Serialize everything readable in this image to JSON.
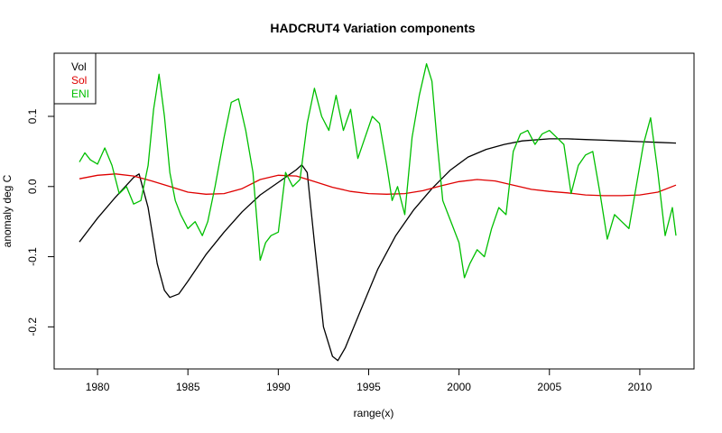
{
  "chart_data": {
    "type": "line",
    "title": "HADCRUT4 Variation components",
    "xlabel": "range(x)",
    "ylabel": "anomaly deg C",
    "xlim": [
      1977.6,
      2013.0
    ],
    "ylim": [
      -0.26,
      0.19
    ],
    "x_ticks": [
      1980,
      1985,
      1990,
      1995,
      2000,
      2005,
      2010
    ],
    "y_ticks": [
      -0.2,
      -0.1,
      0.0,
      0.1
    ],
    "x_tick_labels": [
      "1980",
      "1985",
      "1990",
      "1995",
      "2000",
      "2005",
      "2010"
    ],
    "y_tick_labels": [
      "-0.2",
      "-0.1",
      "0.0",
      "0.1"
    ],
    "legend": {
      "position": "top-left"
    },
    "grid": false,
    "series": [
      {
        "name": "Vol",
        "color": "#000000",
        "x": [
          1979.0,
          1980.0,
          1981.0,
          1982.0,
          1982.3,
          1982.8,
          1983.3,
          1983.7,
          1984.0,
          1984.5,
          1985.0,
          1986.0,
          1987.0,
          1988.0,
          1989.0,
          1990.0,
          1991.0,
          1991.3,
          1991.6,
          1992.0,
          1992.5,
          1993.0,
          1993.3,
          1993.7,
          1994.5,
          1995.5,
          1996.5,
          1997.5,
          1998.5,
          1999.5,
          2000.5,
          2001.5,
          2002.5,
          2003.5,
          2005.0,
          2006.0,
          2007.0,
          2008.0,
          2009.0,
          2010.0,
          2011.0,
          2012.0
        ],
        "y": [
          -0.079,
          -0.045,
          -0.015,
          0.013,
          0.018,
          -0.03,
          -0.11,
          -0.148,
          -0.158,
          -0.153,
          -0.135,
          -0.097,
          -0.065,
          -0.036,
          -0.012,
          0.006,
          0.024,
          0.031,
          0.02,
          -0.08,
          -0.2,
          -0.242,
          -0.248,
          -0.23,
          -0.18,
          -0.118,
          -0.07,
          -0.033,
          -0.003,
          0.023,
          0.042,
          0.053,
          0.06,
          0.065,
          0.068,
          0.068,
          0.067,
          0.066,
          0.065,
          0.064,
          0.063,
          0.062
        ]
      },
      {
        "name": "Sol",
        "color": "#df0000",
        "x": [
          1979.0,
          1980.0,
          1981.0,
          1982.0,
          1983.0,
          1984.0,
          1985.0,
          1986.0,
          1987.0,
          1988.0,
          1989.0,
          1990.0,
          1991.0,
          1992.0,
          1993.0,
          1994.0,
          1995.0,
          1996.0,
          1997.0,
          1998.0,
          1999.0,
          2000.0,
          2001.0,
          2002.0,
          2003.0,
          2004.0,
          2005.0,
          2006.0,
          2007.0,
          2008.0,
          2009.0,
          2010.0,
          2011.0,
          2012.0
        ],
        "y": [
          0.011,
          0.016,
          0.018,
          0.015,
          0.008,
          0.0,
          -0.008,
          -0.011,
          -0.01,
          -0.003,
          0.01,
          0.016,
          0.015,
          0.007,
          -0.001,
          -0.007,
          -0.01,
          -0.011,
          -0.01,
          -0.006,
          0.001,
          0.007,
          0.01,
          0.008,
          0.002,
          -0.004,
          -0.007,
          -0.009,
          -0.012,
          -0.013,
          -0.013,
          -0.012,
          -0.008,
          0.002
        ]
      },
      {
        "name": "ENI",
        "color": "#00bf00",
        "x": [
          1979.0,
          1979.3,
          1979.6,
          1980.0,
          1980.4,
          1980.8,
          1981.2,
          1981.6,
          1982.0,
          1982.4,
          1982.8,
          1983.1,
          1983.4,
          1983.7,
          1984.0,
          1984.3,
          1984.6,
          1985.0,
          1985.4,
          1985.8,
          1986.1,
          1986.5,
          1987.0,
          1987.4,
          1987.8,
          1988.2,
          1988.6,
          1989.0,
          1989.3,
          1989.6,
          1990.0,
          1990.4,
          1990.8,
          1991.2,
          1991.6,
          1992.0,
          1992.4,
          1992.8,
          1993.2,
          1993.6,
          1994.0,
          1994.4,
          1994.8,
          1995.2,
          1995.6,
          1996.0,
          1996.3,
          1996.6,
          1997.0,
          1997.4,
          1997.8,
          1998.2,
          1998.5,
          1998.8,
          1999.1,
          1999.4,
          1999.7,
          2000.0,
          2000.3,
          2000.6,
          2001.0,
          2001.4,
          2001.8,
          2002.2,
          2002.6,
          2003.0,
          2003.4,
          2003.8,
          2004.2,
          2004.6,
          2005.0,
          2005.4,
          2005.8,
          2006.2,
          2006.6,
          2007.0,
          2007.4,
          2007.8,
          2008.2,
          2008.6,
          2009.0,
          2009.4,
          2009.8,
          2010.2,
          2010.6,
          2011.0,
          2011.4,
          2011.8,
          2012.0
        ],
        "y": [
          0.035,
          0.048,
          0.038,
          0.032,
          0.055,
          0.03,
          -0.01,
          0.0,
          -0.025,
          -0.02,
          0.03,
          0.11,
          0.16,
          0.1,
          0.02,
          -0.02,
          -0.04,
          -0.06,
          -0.05,
          -0.07,
          -0.05,
          0.0,
          0.07,
          0.12,
          0.125,
          0.08,
          0.02,
          -0.105,
          -0.08,
          -0.07,
          -0.065,
          0.02,
          0.0,
          0.01,
          0.09,
          0.14,
          0.1,
          0.08,
          0.13,
          0.08,
          0.11,
          0.04,
          0.07,
          0.1,
          0.09,
          0.03,
          -0.02,
          0.0,
          -0.04,
          0.07,
          0.13,
          0.175,
          0.15,
          0.06,
          -0.02,
          -0.04,
          -0.06,
          -0.08,
          -0.13,
          -0.11,
          -0.09,
          -0.1,
          -0.06,
          -0.03,
          -0.04,
          0.05,
          0.075,
          0.08,
          0.06,
          0.075,
          0.08,
          0.07,
          0.06,
          -0.01,
          0.03,
          0.045,
          0.05,
          -0.01,
          -0.075,
          -0.04,
          -0.05,
          -0.06,
          0.0,
          0.06,
          0.098,
          0.02,
          -0.07,
          -0.03,
          -0.07
        ]
      }
    ]
  }
}
